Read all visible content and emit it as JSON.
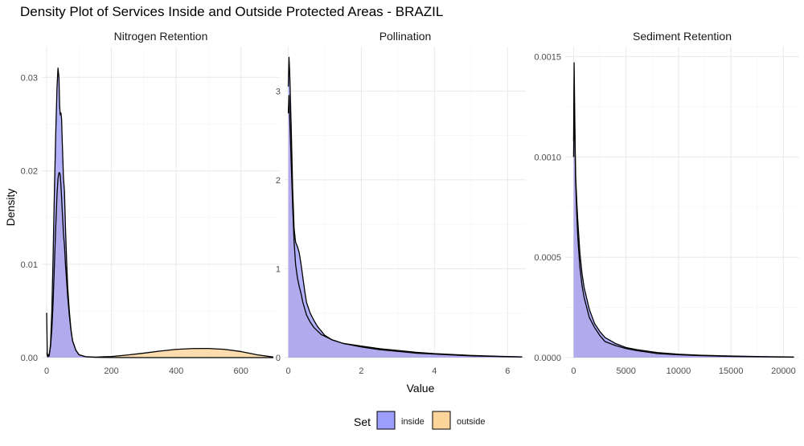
{
  "chart_data": {
    "type": "area",
    "title": "Density Plot of Services Inside and Outside Protected Areas - BRAZIL",
    "xlabel": "Value",
    "ylabel": "Density",
    "legend": {
      "title": "Set",
      "placement": "bottom",
      "entries": [
        {
          "name": "inside",
          "color": "#9d9dfc"
        },
        {
          "name": "outside",
          "color": "#fdd49a"
        }
      ],
      "overlap_color": "#c49a9f"
    },
    "grid": true,
    "panels": [
      {
        "strip": "Nitrogen Retention",
        "xlim": [
          -15,
          720
        ],
        "ylim": [
          0,
          0.0333
        ],
        "x_ticks": [
          0,
          200,
          400,
          600
        ],
        "y_ticks": [
          0,
          0.01,
          0.02,
          0.03
        ],
        "x_tick_labels": [
          "0",
          "200",
          "400",
          "600"
        ],
        "y_tick_labels": [
          "0.00",
          "0.01",
          "0.02",
          "0.03"
        ],
        "series": [
          {
            "name": "inside",
            "x": [
              0,
              2,
              4,
              8,
              12,
              16,
              20,
              24,
              28,
              32,
              35,
              38,
              40,
              42,
              44,
              46,
              48,
              50,
              52,
              55,
              58,
              62,
              65,
              70,
              75,
              80,
              90,
              100,
              120,
              150,
              200,
              300,
              400,
              500,
              600,
              700
            ],
            "y": [
              0.0048,
              0.0002,
              0.0001,
              0.0002,
              0.0015,
              0.005,
              0.011,
              0.018,
              0.024,
              0.029,
              0.031,
              0.03,
              0.027,
              0.026,
              0.0262,
              0.0256,
              0.0233,
              0.0212,
              0.0192,
              0.0178,
              0.014,
              0.01,
              0.0075,
              0.005,
              0.003,
              0.0018,
              0.0008,
              0.0003,
              0.0001,
              3e-05,
              1e-05,
              0.0,
              0.0,
              0.0,
              0.0,
              0.0
            ]
          },
          {
            "name": "outside",
            "x": [
              0,
              4,
              8,
              12,
              16,
              20,
              24,
              28,
              32,
              35,
              38,
              40,
              42,
              44,
              46,
              48,
              50,
              52,
              55,
              58,
              62,
              65,
              70,
              75,
              80,
              90,
              100,
              120,
              150,
              200,
              250,
              300,
              350,
              400,
              450,
              500,
              550,
              600,
              650,
              700
            ],
            "y": [
              0.0005,
              0.0002,
              0.0004,
              0.0012,
              0.003,
              0.006,
              0.01,
              0.014,
              0.0175,
              0.0192,
              0.0198,
              0.0198,
              0.0195,
              0.0185,
              0.0172,
              0.0158,
              0.0145,
              0.0132,
              0.012,
              0.01,
              0.008,
              0.0065,
              0.0045,
              0.003,
              0.0018,
              0.0008,
              0.0003,
              0.0001,
              5e-05,
              0.00012,
              0.00028,
              0.00048,
              0.0007,
              0.00088,
              0.00097,
              0.00098,
              0.00088,
              0.00065,
              0.0003,
              6e-05
            ]
          }
        ]
      },
      {
        "strip": "Pollination",
        "xlim": [
          -0.1,
          6.5
        ],
        "ylim": [
          0,
          3.5
        ],
        "x_ticks": [
          0,
          2,
          4,
          6
        ],
        "y_ticks": [
          0,
          1,
          2,
          3
        ],
        "x_tick_labels": [
          "0",
          "2",
          "4",
          "6"
        ],
        "y_tick_labels": [
          "0",
          "1",
          "2",
          "3"
        ],
        "series": [
          {
            "name": "inside",
            "x": [
              0,
              0.02,
              0.04,
              0.08,
              0.12,
              0.16,
              0.2,
              0.25,
              0.3,
              0.35,
              0.4,
              0.45,
              0.5,
              0.6,
              0.7,
              0.8,
              0.9,
              1.0,
              1.2,
              1.5,
              2.0,
              2.5,
              3.0,
              3.5,
              4.0,
              4.5,
              5.0,
              5.5,
              6.0,
              6.4
            ],
            "y": [
              3.05,
              3.38,
              3.2,
              2.6,
              1.9,
              1.45,
              1.3,
              1.25,
              1.18,
              1.05,
              0.9,
              0.75,
              0.62,
              0.5,
              0.42,
              0.35,
              0.3,
              0.25,
              0.2,
              0.16,
              0.12,
              0.09,
              0.07,
              0.05,
              0.04,
              0.03,
              0.02,
              0.015,
              0.01,
              0.008
            ]
          },
          {
            "name": "outside",
            "x": [
              0,
              0.02,
              0.04,
              0.08,
              0.12,
              0.16,
              0.2,
              0.25,
              0.3,
              0.35,
              0.4,
              0.45,
              0.5,
              0.6,
              0.7,
              0.8,
              0.9,
              1.0,
              1.2,
              1.5,
              2.0,
              2.5,
              3.0,
              3.5,
              4.0,
              4.5,
              5.0,
              5.5,
              6.0,
              6.4
            ],
            "y": [
              2.75,
              2.95,
              2.7,
              2.2,
              1.7,
              1.3,
              1.05,
              0.9,
              0.8,
              0.72,
              0.62,
              0.55,
              0.48,
              0.4,
              0.34,
              0.3,
              0.26,
              0.24,
              0.2,
              0.16,
              0.13,
              0.1,
              0.08,
              0.06,
              0.045,
              0.035,
              0.025,
              0.018,
              0.012,
              0.008
            ]
          }
        ]
      },
      {
        "strip": "Sediment Retention",
        "xlim": [
          -800,
          21500
        ],
        "ylim": [
          0,
          0.00155
        ],
        "x_ticks": [
          0,
          5000,
          10000,
          15000,
          20000
        ],
        "y_ticks": [
          0,
          0.0005,
          0.001,
          0.0015
        ],
        "x_tick_labels": [
          "0",
          "5000",
          "10000",
          "15000",
          "20000"
        ],
        "y_tick_labels": [
          "0.0000",
          "0.0005",
          "0.0010",
          "0.0015"
        ],
        "series": [
          {
            "name": "inside",
            "x": [
              0,
              50,
              100,
              150,
              200,
              300,
              400,
              600,
              800,
              1000,
              1500,
              2000,
              2500,
              3000,
              4000,
              5000,
              6000,
              8000,
              10000,
              12000,
              15000,
              18000,
              21000
            ],
            "y": [
              0.00108,
              0.00147,
              0.00125,
              0.00105,
              0.0009,
              0.00078,
              0.00068,
              0.00052,
              0.00042,
              0.00035,
              0.00024,
              0.00017,
              0.00013,
              0.0001,
              7e-05,
              5e-05,
              4e-05,
              2.5e-05,
              1.7e-05,
              1.2e-05,
              8e-06,
              5e-06,
              3e-06
            ]
          },
          {
            "name": "outside",
            "x": [
              0,
              50,
              100,
              150,
              200,
              300,
              400,
              600,
              800,
              1000,
              1500,
              2000,
              2500,
              3000,
              4000,
              5000,
              6000,
              8000,
              10000,
              12000,
              15000,
              18000,
              21000
            ],
            "y": [
              0.001,
              0.00135,
              0.00118,
              0.001,
              0.00087,
              0.00072,
              0.0006,
              0.00045,
              0.00036,
              0.0003,
              0.0002,
              0.00015,
              0.00011,
              8e-05,
              6e-05,
              4.5e-05,
              3.5e-05,
              2e-05,
              1.4e-05,
              1e-05,
              6e-06,
              4e-06,
              2e-06
            ]
          }
        ]
      }
    ]
  }
}
